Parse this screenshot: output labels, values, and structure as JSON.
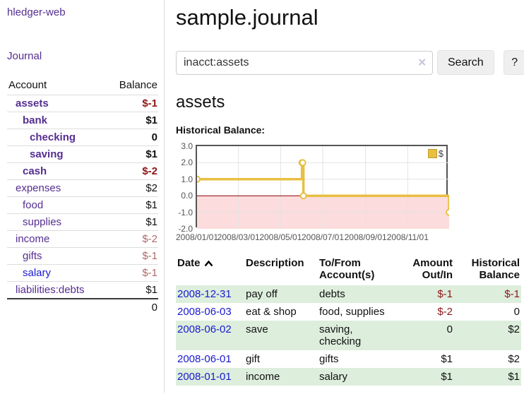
{
  "sidebar": {
    "app_title": "hledger-web",
    "nav": {
      "journal": "Journal"
    },
    "accounts_table": {
      "headers": {
        "account": "Account",
        "balance": "Balance"
      },
      "rows": [
        {
          "account": "assets",
          "depth": 1,
          "bold": true,
          "balance": "$-1",
          "negative": true,
          "link_color": "purple"
        },
        {
          "account": "bank",
          "depth": 2,
          "bold": true,
          "balance": "$1",
          "negative": false,
          "link_color": "purple"
        },
        {
          "account": "checking",
          "depth": 3,
          "bold": true,
          "balance": "0",
          "negative": false,
          "link_color": "purple"
        },
        {
          "account": "saving",
          "depth": 3,
          "bold": true,
          "balance": "$1",
          "negative": false,
          "link_color": "purple"
        },
        {
          "account": "cash",
          "depth": 2,
          "bold": true,
          "balance": "$-2",
          "negative": true,
          "link_color": "purple"
        },
        {
          "account": "expenses",
          "depth": 1,
          "bold": false,
          "balance": "$2",
          "negative": false,
          "link_color": "purple"
        },
        {
          "account": "food",
          "depth": 2,
          "bold": false,
          "balance": "$1",
          "negative": false,
          "link_color": "purple"
        },
        {
          "account": "supplies",
          "depth": 2,
          "bold": false,
          "balance": "$1",
          "negative": false,
          "link_color": "purple"
        },
        {
          "account": "income",
          "depth": 1,
          "bold": false,
          "balance": "$-2",
          "negative": true,
          "link_color": "purple"
        },
        {
          "account": "gifts",
          "depth": 2,
          "bold": false,
          "balance": "$-1",
          "negative": true,
          "link_color": "purple"
        },
        {
          "account": "salary",
          "depth": 2,
          "bold": false,
          "balance": "$-1",
          "negative": true,
          "link_color": "blue"
        },
        {
          "account": "liabilities:debts",
          "depth": 1,
          "bold": false,
          "balance": "$1",
          "negative": false,
          "link_color": "purple"
        }
      ],
      "total": "0"
    }
  },
  "main": {
    "title": "sample.journal",
    "search": {
      "value": "inacct:assets",
      "clear_icon": "✕",
      "button": "Search",
      "help_button": "?"
    },
    "account_heading": "assets"
  },
  "chart_data": {
    "type": "line",
    "step": true,
    "title": "Historical Balance:",
    "series": [
      {
        "name": "$",
        "color": "#e8bf42",
        "points": [
          {
            "date": "2008-01-01",
            "value": 1
          },
          {
            "date": "2008-06-01",
            "value": 2
          },
          {
            "date": "2008-06-02",
            "value": 2
          },
          {
            "date": "2008-06-03",
            "value": 0
          },
          {
            "date": "2008-12-31",
            "value": -1
          }
        ]
      }
    ],
    "xlim": [
      "2008-01-01",
      "2008-12-31"
    ],
    "ylim": [
      -2,
      3
    ],
    "y_ticks": [
      {
        "value": 3,
        "label": "3.0"
      },
      {
        "value": 2,
        "label": "2.0"
      },
      {
        "value": 1,
        "label": "1.0"
      },
      {
        "value": 0,
        "label": "0.0"
      },
      {
        "value": -1,
        "label": "-1.0"
      },
      {
        "value": -2,
        "label": "-2.0"
      }
    ],
    "x_ticks": [
      {
        "value": "2008-01-01",
        "label": "2008/01/01"
      },
      {
        "value": "2008-03-01",
        "label": "2008/03/01"
      },
      {
        "value": "2008-05-01",
        "label": "2008/05/01"
      },
      {
        "value": "2008-07-01",
        "label": "2008/07/01"
      },
      {
        "value": "2008-09-01",
        "label": "2008/09/01"
      },
      {
        "value": "2008-11-01",
        "label": "2008/11/01"
      }
    ],
    "grid": true,
    "legend": {
      "label": "$",
      "position": "top-right"
    },
    "negative_region_fill": "#fcdcdc",
    "zero_line_color": "#8b0000",
    "grid_color": "#e3e3e3",
    "border_color": "#545454"
  },
  "register": {
    "headers": [
      {
        "lines": [
          "Date"
        ],
        "sorted": "asc"
      },
      {
        "lines": [
          "Description"
        ]
      },
      {
        "lines": [
          "To/From",
          "Account(s)"
        ]
      },
      {
        "lines": [
          "Amount",
          "Out/In"
        ],
        "align": "right"
      },
      {
        "lines": [
          "Historical",
          "Balance"
        ],
        "align": "right"
      }
    ],
    "rows": [
      {
        "date": "2008-12-31",
        "description": "pay off",
        "accounts": "debts",
        "amount": "$-1",
        "amount_negative": true,
        "balance": "$-1",
        "balance_negative": true
      },
      {
        "date": "2008-06-03",
        "description": "eat & shop",
        "accounts": "food, supplies",
        "amount": "$-2",
        "amount_negative": true,
        "balance": "0",
        "balance_negative": false
      },
      {
        "date": "2008-06-02",
        "description": "save",
        "accounts": "saving, checking",
        "amount": "0",
        "amount_negative": false,
        "balance": "$2",
        "balance_negative": false
      },
      {
        "date": "2008-06-01",
        "description": "gift",
        "accounts": "gifts",
        "amount": "$1",
        "amount_negative": false,
        "balance": "$2",
        "balance_negative": false
      },
      {
        "date": "2008-01-01",
        "description": "income",
        "accounts": "salary",
        "amount": "$1",
        "amount_negative": false,
        "balance": "$1",
        "balance_negative": false
      }
    ]
  },
  "colors": {
    "link_purple": "#552e91",
    "link_blue": "#1a1ace",
    "negative_strong": "#8d1616",
    "negative_muted": "#b06a6a",
    "row_green": "#ddeedd",
    "button_bg": "#efefef",
    "chart_line_gold": "#e8bf42",
    "chart_negative_fill": "#fcdcdc",
    "chart_zero_line": "#8b0000"
  }
}
